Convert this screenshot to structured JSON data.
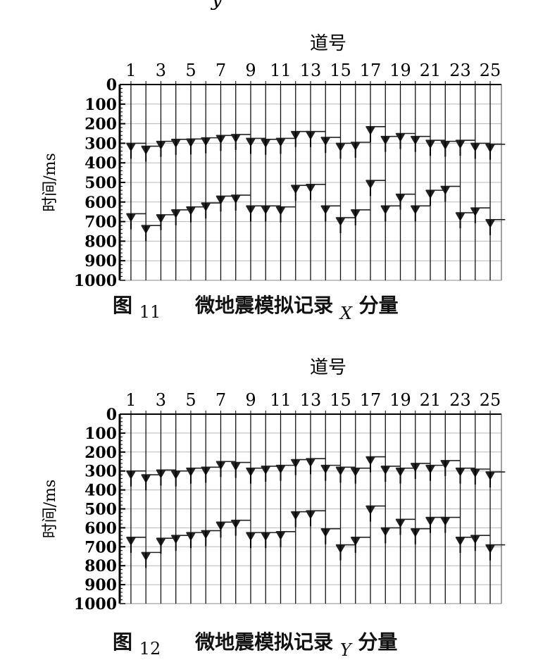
{
  "top_fragment": "y",
  "figures": [
    {
      "caption_prefix": "图",
      "caption_number": "11",
      "caption_text": "微地震模拟记录",
      "caption_component": "X",
      "caption_suffix": "分量",
      "xlabel": "道号",
      "ylabel": "时间/ms"
    },
    {
      "caption_prefix": "图",
      "caption_number": "12",
      "caption_text": "微地震模拟记录",
      "caption_component": "Y",
      "caption_suffix": "分量",
      "xlabel": "道号",
      "ylabel": "时间/ms"
    }
  ],
  "chart_data": [
    {
      "type": "line",
      "title": "",
      "xlabel": "道号",
      "ylabel": "时间/ms",
      "x_tick_labels": [
        "1",
        "3",
        "5",
        "7",
        "9",
        "11",
        "13",
        "15",
        "17",
        "19",
        "21",
        "23",
        "25"
      ],
      "y_tick_labels": [
        "0",
        "100",
        "200",
        "300",
        "400",
        "500",
        "600",
        "700",
        "800",
        "900",
        "1000"
      ],
      "xlim": [
        1,
        25
      ],
      "ylim": [
        0,
        1000
      ],
      "grid": true,
      "traces": [
        1,
        2,
        3,
        4,
        5,
        6,
        7,
        8,
        9,
        10,
        11,
        12,
        13,
        14,
        15,
        16,
        17,
        18,
        19,
        20,
        21,
        22,
        23,
        24,
        25
      ],
      "series": [
        {
          "name": "",
          "x": [
            1,
            2,
            3,
            4,
            5,
            6,
            7,
            8,
            9,
            10,
            11,
            12,
            13,
            14,
            15,
            16,
            17,
            18,
            19,
            20,
            21,
            22,
            23,
            24,
            25
          ],
          "y": [
            300,
            315,
            290,
            280,
            278,
            272,
            260,
            255,
            275,
            280,
            275,
            240,
            240,
            270,
            300,
            295,
            215,
            265,
            250,
            265,
            285,
            290,
            285,
            300,
            305
          ]
        },
        {
          "name": "",
          "x": [
            1,
            2,
            3,
            4,
            5,
            6,
            7,
            8,
            9,
            10,
            11,
            12,
            13,
            14,
            15,
            16,
            17,
            18,
            19,
            20,
            21,
            22,
            23,
            24,
            25
          ],
          "y": [
            660,
            720,
            665,
            640,
            625,
            605,
            570,
            565,
            620,
            620,
            625,
            515,
            510,
            620,
            680,
            640,
            490,
            620,
            560,
            620,
            540,
            520,
            655,
            630,
            690
          ]
        }
      ]
    },
    {
      "type": "line",
      "title": "",
      "xlabel": "道号",
      "ylabel": "时间/ms",
      "x_tick_labels": [
        "1",
        "3",
        "5",
        "7",
        "9",
        "11",
        "13",
        "15",
        "17",
        "19",
        "21",
        "23",
        "25"
      ],
      "y_tick_labels": [
        "0",
        "100",
        "200",
        "300",
        "400",
        "500",
        "600",
        "700",
        "800",
        "900",
        "1000"
      ],
      "xlim": [
        1,
        25
      ],
      "ylim": [
        0,
        1000
      ],
      "grid": true,
      "traces": [
        1,
        2,
        3,
        4,
        5,
        6,
        7,
        8,
        9,
        10,
        11,
        12,
        13,
        14,
        15,
        16,
        17,
        18,
        19,
        20,
        21,
        22,
        23,
        24,
        25
      ],
      "series": [
        {
          "name": "",
          "x": [
            1,
            2,
            3,
            4,
            5,
            6,
            7,
            8,
            9,
            10,
            11,
            12,
            13,
            14,
            15,
            16,
            17,
            18,
            19,
            20,
            21,
            22,
            23,
            24,
            25
          ],
          "y": [
            300,
            320,
            295,
            300,
            285,
            280,
            250,
            255,
            285,
            275,
            270,
            240,
            235,
            270,
            280,
            285,
            225,
            275,
            285,
            260,
            270,
            245,
            285,
            290,
            305
          ]
        },
        {
          "name": "",
          "x": [
            1,
            2,
            3,
            4,
            5,
            6,
            7,
            8,
            9,
            10,
            11,
            12,
            13,
            14,
            15,
            16,
            17,
            18,
            19,
            20,
            21,
            22,
            23,
            24,
            25
          ],
          "y": [
            650,
            730,
            655,
            640,
            625,
            615,
            570,
            560,
            625,
            625,
            620,
            515,
            510,
            605,
            690,
            650,
            485,
            600,
            555,
            605,
            545,
            545,
            650,
            640,
            690
          ]
        }
      ]
    }
  ]
}
